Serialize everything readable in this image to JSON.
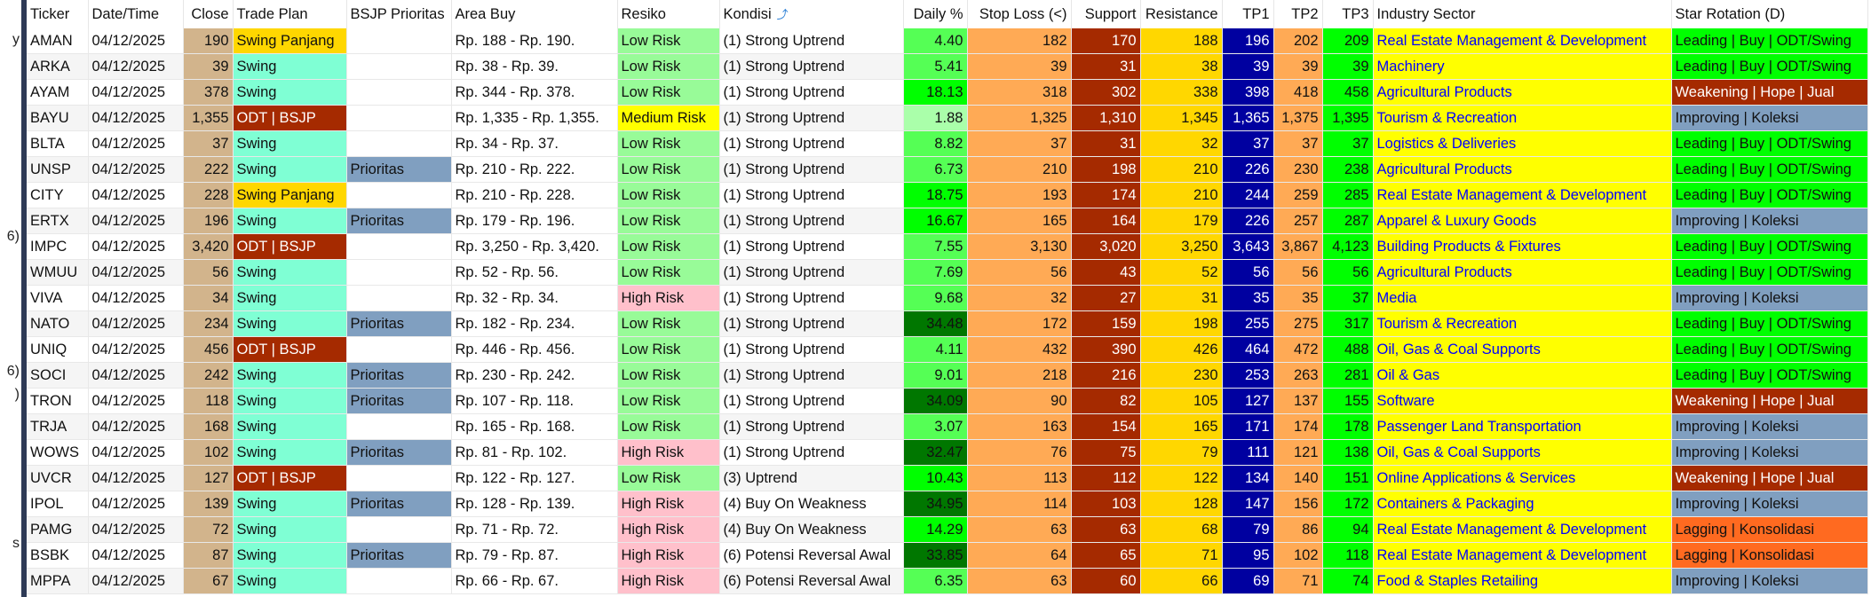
{
  "left_fragments": [
    "y",
    "6)",
    "6)",
    ")",
    "s"
  ],
  "columns": [
    "Ticker",
    "Date/Time",
    "Close",
    "Trade Plan",
    "BSJP Prioritas",
    "Area Buy",
    "Resiko",
    "Kondisi",
    "Daily %",
    "Stop Loss (<)",
    "Support",
    "Resistance",
    "TP1",
    "TP2",
    "TP3",
    "Industry Sector",
    "Star Rotation (D)"
  ],
  "sort_icon": "sort-arrow-icon",
  "colors": {
    "close": "#d2b48c",
    "swing": "#7fffd4",
    "swing_panjang": "#ffd700",
    "odt_bsjp": "#a52a00",
    "prioritas": "#809fc0",
    "low_risk": "#98fb98",
    "medium_risk": "#ffff00",
    "high_risk": "#ffc0cb",
    "daily_low": "#aaffaa",
    "daily_mid": "#55ff55",
    "daily_high": "#00ff00",
    "daily_top": "#007700",
    "stop_loss": "#ffaa55",
    "support": "#a52a00",
    "resistance": "#ffd700",
    "tp1": "#0000a0",
    "tp2": "#ffaa55",
    "tp3": "#00ff00",
    "sector_bg": "#ffff00",
    "sector_text": "#0000ff",
    "leading": "#00ff00",
    "weakening": "#a52a00",
    "improving": "#809fc0",
    "lagging": "#ff6a20"
  },
  "rows": [
    {
      "ticker": "AMAN",
      "date": "04/12/2025",
      "close": "190",
      "plan": "Swing Panjang",
      "bsjp": "",
      "area": "Rp. 188 - Rp. 190.",
      "risk": "Low Risk",
      "kondisi": "(1) Strong Uptrend",
      "daily": "4.40",
      "sl": "182",
      "support": "170",
      "resistance": "188",
      "tp1": "196",
      "tp2": "202",
      "tp3": "209",
      "sector": "Real Estate Management & Development",
      "star": "Leading | Buy | ODT/Swing"
    },
    {
      "ticker": "ARKA",
      "date": "04/12/2025",
      "close": "39",
      "plan": "Swing",
      "bsjp": "",
      "area": "Rp. 38 - Rp. 39.",
      "risk": "Low Risk",
      "kondisi": "(1) Strong Uptrend",
      "daily": "5.41",
      "sl": "39",
      "support": "31",
      "resistance": "38",
      "tp1": "39",
      "tp2": "39",
      "tp3": "39",
      "sector": "Machinery",
      "star": "Leading | Buy | ODT/Swing"
    },
    {
      "ticker": "AYAM",
      "date": "04/12/2025",
      "close": "378",
      "plan": "Swing",
      "bsjp": "",
      "area": "Rp. 344 - Rp. 378.",
      "risk": "Low Risk",
      "kondisi": "(1) Strong Uptrend",
      "daily": "18.13",
      "sl": "318",
      "support": "302",
      "resistance": "338",
      "tp1": "398",
      "tp2": "418",
      "tp3": "458",
      "sector": "Agricultural Products",
      "star": "Weakening | Hope | Jual"
    },
    {
      "ticker": "BAYU",
      "date": "04/12/2025",
      "close": "1,355",
      "plan": "ODT | BSJP",
      "bsjp": "",
      "area": "Rp. 1,335 - Rp. 1,355.",
      "risk": "Medium Risk",
      "kondisi": "(1) Strong Uptrend",
      "daily": "1.88",
      "sl": "1,325",
      "support": "1,310",
      "resistance": "1,345",
      "tp1": "1,365",
      "tp2": "1,375",
      "tp3": "1,395",
      "sector": "Tourism & Recreation",
      "star": "Improving | Koleksi"
    },
    {
      "ticker": "BLTA",
      "date": "04/12/2025",
      "close": "37",
      "plan": "Swing",
      "bsjp": "",
      "area": "Rp. 34 - Rp. 37.",
      "risk": "Low Risk",
      "kondisi": "(1) Strong Uptrend",
      "daily": "8.82",
      "sl": "37",
      "support": "31",
      "resistance": "32",
      "tp1": "37",
      "tp2": "37",
      "tp3": "37",
      "sector": "Logistics & Deliveries",
      "star": "Leading | Buy | ODT/Swing"
    },
    {
      "ticker": "UNSP",
      "date": "04/12/2025",
      "close": "222",
      "plan": "Swing",
      "bsjp": "Prioritas",
      "area": "Rp. 210 - Rp. 222.",
      "risk": "Low Risk",
      "kondisi": "(1) Strong Uptrend",
      "daily": "6.73",
      "sl": "210",
      "support": "198",
      "resistance": "210",
      "tp1": "226",
      "tp2": "230",
      "tp3": "238",
      "sector": "Agricultural Products",
      "star": "Leading | Buy | ODT/Swing"
    },
    {
      "ticker": "CITY",
      "date": "04/12/2025",
      "close": "228",
      "plan": "Swing Panjang",
      "bsjp": "",
      "area": "Rp. 210 - Rp. 228.",
      "risk": "Low Risk",
      "kondisi": "(1) Strong Uptrend",
      "daily": "18.75",
      "sl": "193",
      "support": "174",
      "resistance": "210",
      "tp1": "244",
      "tp2": "259",
      "tp3": "285",
      "sector": "Real Estate Management & Development",
      "star": "Leading | Buy | ODT/Swing"
    },
    {
      "ticker": "ERTX",
      "date": "04/12/2025",
      "close": "196",
      "plan": "Swing",
      "bsjp": "Prioritas",
      "area": "Rp. 179 - Rp. 196.",
      "risk": "Low Risk",
      "kondisi": "(1) Strong Uptrend",
      "daily": "16.67",
      "sl": "165",
      "support": "164",
      "resistance": "179",
      "tp1": "226",
      "tp2": "257",
      "tp3": "287",
      "sector": "Apparel & Luxury Goods",
      "star": "Improving | Koleksi"
    },
    {
      "ticker": "IMPC",
      "date": "04/12/2025",
      "close": "3,420",
      "plan": "ODT | BSJP",
      "bsjp": "",
      "area": "Rp. 3,250 - Rp. 3,420.",
      "risk": "Low Risk",
      "kondisi": "(1) Strong Uptrend",
      "daily": "7.55",
      "sl": "3,130",
      "support": "3,020",
      "resistance": "3,250",
      "tp1": "3,643",
      "tp2": "3,867",
      "tp3": "4,123",
      "sector": "Building Products & Fixtures",
      "star": "Leading | Buy | ODT/Swing"
    },
    {
      "ticker": "WMUU",
      "date": "04/12/2025",
      "close": "56",
      "plan": "Swing",
      "bsjp": "",
      "area": "Rp. 52 - Rp. 56.",
      "risk": "Low Risk",
      "kondisi": "(1) Strong Uptrend",
      "daily": "7.69",
      "sl": "56",
      "support": "43",
      "resistance": "52",
      "tp1": "56",
      "tp2": "56",
      "tp3": "56",
      "sector": "Agricultural Products",
      "star": "Leading | Buy | ODT/Swing"
    },
    {
      "ticker": "VIVA",
      "date": "04/12/2025",
      "close": "34",
      "plan": "Swing",
      "bsjp": "",
      "area": "Rp. 32 - Rp. 34.",
      "risk": "High Risk",
      "kondisi": "(1) Strong Uptrend",
      "daily": "9.68",
      "sl": "32",
      "support": "27",
      "resistance": "31",
      "tp1": "35",
      "tp2": "35",
      "tp3": "37",
      "sector": "Media",
      "star": "Improving | Koleksi"
    },
    {
      "ticker": "NATO",
      "date": "04/12/2025",
      "close": "234",
      "plan": "Swing",
      "bsjp": "Prioritas",
      "area": "Rp. 182 - Rp. 234.",
      "risk": "Low Risk",
      "kondisi": "(1) Strong Uptrend",
      "daily": "34.48",
      "sl": "172",
      "support": "159",
      "resistance": "198",
      "tp1": "255",
      "tp2": "275",
      "tp3": "317",
      "sector": "Tourism & Recreation",
      "star": "Leading | Buy | ODT/Swing"
    },
    {
      "ticker": "UNIQ",
      "date": "04/12/2025",
      "close": "456",
      "plan": "ODT | BSJP",
      "bsjp": "",
      "area": "Rp. 446 - Rp. 456.",
      "risk": "Low Risk",
      "kondisi": "(1) Strong Uptrend",
      "daily": "4.11",
      "sl": "432",
      "support": "390",
      "resistance": "426",
      "tp1": "464",
      "tp2": "472",
      "tp3": "488",
      "sector": "Oil, Gas & Coal Supports",
      "star": "Leading | Buy | ODT/Swing"
    },
    {
      "ticker": "SOCI",
      "date": "04/12/2025",
      "close": "242",
      "plan": "Swing",
      "bsjp": "Prioritas",
      "area": "Rp. 230 - Rp. 242.",
      "risk": "Low Risk",
      "kondisi": "(1) Strong Uptrend",
      "daily": "9.01",
      "sl": "218",
      "support": "216",
      "resistance": "230",
      "tp1": "253",
      "tp2": "263",
      "tp3": "281",
      "sector": "Oil & Gas",
      "star": "Leading | Buy | ODT/Swing"
    },
    {
      "ticker": "TRON",
      "date": "04/12/2025",
      "close": "118",
      "plan": "Swing",
      "bsjp": "Prioritas",
      "area": "Rp. 107 - Rp. 118.",
      "risk": "Low Risk",
      "kondisi": "(1) Strong Uptrend",
      "daily": "34.09",
      "sl": "90",
      "support": "82",
      "resistance": "105",
      "tp1": "127",
      "tp2": "137",
      "tp3": "155",
      "sector": "Software",
      "star": "Weakening | Hope | Jual"
    },
    {
      "ticker": "TRJA",
      "date": "04/12/2025",
      "close": "168",
      "plan": "Swing",
      "bsjp": "",
      "area": "Rp. 165 - Rp. 168.",
      "risk": "Low Risk",
      "kondisi": "(1) Strong Uptrend",
      "daily": "3.07",
      "sl": "163",
      "support": "154",
      "resistance": "165",
      "tp1": "171",
      "tp2": "174",
      "tp3": "178",
      "sector": "Passenger Land Transportation",
      "star": "Improving | Koleksi"
    },
    {
      "ticker": "WOWS",
      "date": "04/12/2025",
      "close": "102",
      "plan": "Swing",
      "bsjp": "Prioritas",
      "area": "Rp. 81 - Rp. 102.",
      "risk": "High Risk",
      "kondisi": "(1) Strong Uptrend",
      "daily": "32.47",
      "sl": "76",
      "support": "75",
      "resistance": "79",
      "tp1": "111",
      "tp2": "121",
      "tp3": "138",
      "sector": "Oil, Gas & Coal Supports",
      "star": "Improving | Koleksi"
    },
    {
      "ticker": "UVCR",
      "date": "04/12/2025",
      "close": "127",
      "plan": "ODT | BSJP",
      "bsjp": "",
      "area": "Rp. 122 - Rp. 127.",
      "risk": "Low Risk",
      "kondisi": "(3) Uptrend",
      "daily": "10.43",
      "sl": "113",
      "support": "112",
      "resistance": "122",
      "tp1": "134",
      "tp2": "140",
      "tp3": "151",
      "sector": "Online Applications & Services",
      "star": "Weakening | Hope | Jual"
    },
    {
      "ticker": "IPOL",
      "date": "04/12/2025",
      "close": "139",
      "plan": "Swing",
      "bsjp": "Prioritas",
      "area": "Rp. 128 - Rp. 139.",
      "risk": "High Risk",
      "kondisi": "(4) Buy On Weakness",
      "daily": "34.95",
      "sl": "114",
      "support": "103",
      "resistance": "128",
      "tp1": "147",
      "tp2": "156",
      "tp3": "172",
      "sector": "Containers & Packaging",
      "star": "Improving | Koleksi"
    },
    {
      "ticker": "PAMG",
      "date": "04/12/2025",
      "close": "72",
      "plan": "Swing",
      "bsjp": "",
      "area": "Rp. 71 - Rp. 72.",
      "risk": "High Risk",
      "kondisi": "(4) Buy On Weakness",
      "daily": "14.29",
      "sl": "63",
      "support": "63",
      "resistance": "68",
      "tp1": "79",
      "tp2": "86",
      "tp3": "94",
      "sector": "Real Estate Management & Development",
      "star": "Lagging | Konsolidasi"
    },
    {
      "ticker": "BSBK",
      "date": "04/12/2025",
      "close": "87",
      "plan": "Swing",
      "bsjp": "Prioritas",
      "area": "Rp. 79 - Rp. 87.",
      "risk": "High Risk",
      "kondisi": "(6) Potensi Reversal Awal",
      "daily": "33.85",
      "sl": "64",
      "support": "65",
      "resistance": "71",
      "tp1": "95",
      "tp2": "102",
      "tp3": "118",
      "sector": "Real Estate Management & Development",
      "star": "Lagging | Konsolidasi"
    },
    {
      "ticker": "MPPA",
      "date": "04/12/2025",
      "close": "67",
      "plan": "Swing",
      "bsjp": "",
      "area": "Rp. 66 - Rp. 67.",
      "risk": "High Risk",
      "kondisi": "(6) Potensi Reversal Awal",
      "daily": "6.35",
      "sl": "63",
      "support": "60",
      "resistance": "66",
      "tp1": "69",
      "tp2": "71",
      "tp3": "74",
      "sector": "Food & Staples Retailing",
      "star": "Improving | Koleksi"
    }
  ]
}
